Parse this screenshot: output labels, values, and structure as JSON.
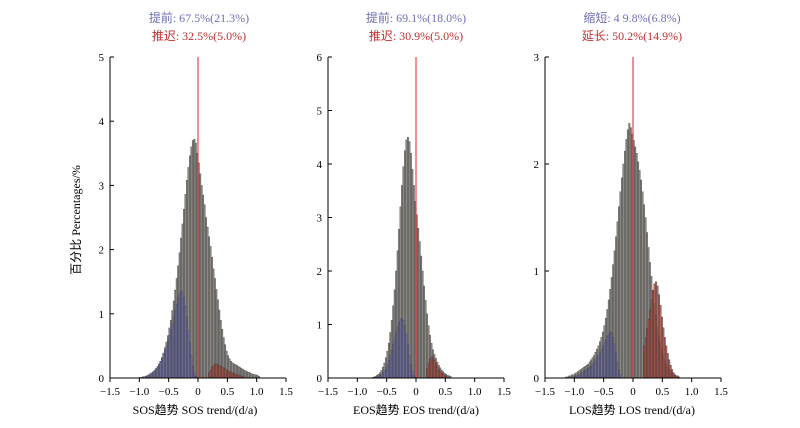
{
  "figure": {
    "ylabel": "百分比 Percentages/%"
  },
  "colors": {
    "gray_bar": "#8c8884",
    "gray_edge": "#3a3a3a",
    "blue_fill": "#6a6a9c",
    "red_fill": "#a84a40",
    "zero_line": "#e02020",
    "ann_blue": "#6f6fb8",
    "ann_red": "#c03030"
  },
  "chart_data": [
    {
      "type": "histogram",
      "xlabel": "SOS趋势 SOS trend/(d/a)",
      "ylim": [
        0,
        5
      ],
      "yticks": [
        "0",
        "1",
        "2",
        "3",
        "4",
        "5"
      ],
      "xlim": [
        -1.5,
        1.5
      ],
      "xticks": [
        "−1.5",
        "−1.0",
        "−0.5",
        "0",
        "0.5",
        "1.0",
        "1.5"
      ],
      "annotation_top": "提前: 67.5%(21.3%)",
      "annotation_bottom": "推迟: 32.5%(5.0%)",
      "bins": {
        "start": -0.95,
        "width": 0.025
      },
      "total": [
        0.01,
        0.02,
        0.02,
        0.03,
        0.04,
        0.05,
        0.07,
        0.09,
        0.11,
        0.14,
        0.17,
        0.21,
        0.26,
        0.32,
        0.39,
        0.47,
        0.56,
        0.66,
        0.78,
        0.9,
        1.05,
        1.2,
        1.37,
        1.55,
        1.75,
        1.95,
        2.18,
        2.4,
        2.63,
        2.86,
        3.08,
        3.28,
        3.46,
        3.6,
        3.7,
        3.72,
        3.66,
        3.5,
        3.35,
        3.18,
        3.0,
        2.85,
        2.7,
        2.5,
        2.35,
        2.2,
        2.05,
        1.88,
        1.7,
        1.55,
        1.38,
        1.22,
        1.06,
        0.9,
        0.76,
        0.63,
        0.52,
        0.42,
        0.35,
        0.3,
        0.26,
        0.24,
        0.22,
        0.21,
        0.2,
        0.18,
        0.17,
        0.15,
        0.14,
        0.12,
        0.11,
        0.1,
        0.09,
        0.08,
        0.07,
        0.06,
        0.05,
        0.05,
        0.04,
        0.03
      ],
      "highlight_neg": [
        0.01,
        0.01,
        0.02,
        0.02,
        0.03,
        0.04,
        0.05,
        0.07,
        0.08,
        0.1,
        0.12,
        0.15,
        0.18,
        0.22,
        0.26,
        0.31,
        0.37,
        0.43,
        0.5,
        0.58,
        0.66,
        0.75,
        0.85,
        0.95,
        1.05,
        1.15,
        1.25,
        1.32,
        1.36,
        1.34,
        1.25,
        1.12,
        0.95,
        0.75,
        0.55,
        0.35,
        0.18,
        0.08,
        0.03,
        0.01
      ],
      "highlight_pos": [
        0.08,
        0.12,
        0.17,
        0.2,
        0.22,
        0.22,
        0.21,
        0.2,
        0.18,
        0.17,
        0.15,
        0.14,
        0.12,
        0.11,
        0.1,
        0.09,
        0.08,
        0.07,
        0.06,
        0.05,
        0.05,
        0.04,
        0.03,
        0.03
      ]
    },
    {
      "type": "histogram",
      "xlabel": "EOS趋势 EOS trend/(d/a)",
      "ylim": [
        0,
        6
      ],
      "yticks": [
        "0",
        "1",
        "2",
        "3",
        "4",
        "5",
        "6"
      ],
      "xlim": [
        -1.5,
        1.5
      ],
      "xticks": [
        "−1.5",
        "−1.0",
        "−0.5",
        "0",
        "0.5",
        "1.0",
        "1.5"
      ],
      "annotation_top": "提前: 69.1%(18.0%)",
      "annotation_bottom": "推迟: 30.9%(5.0%)",
      "bins": {
        "start": -0.75,
        "width": 0.025
      },
      "total": [
        0.01,
        0.02,
        0.03,
        0.05,
        0.07,
        0.1,
        0.14,
        0.2,
        0.28,
        0.38,
        0.5,
        0.65,
        0.85,
        1.08,
        1.35,
        1.65,
        2.0,
        2.38,
        2.78,
        3.2,
        3.6,
        3.95,
        4.25,
        4.45,
        4.5,
        4.42,
        4.2,
        3.9,
        3.6,
        3.3,
        3.05,
        2.8,
        2.55,
        2.28,
        2.0,
        1.72,
        1.45,
        1.2,
        0.98,
        0.8,
        0.65,
        0.53,
        0.44,
        0.37,
        0.3,
        0.24,
        0.19,
        0.15,
        0.12,
        0.09,
        0.07,
        0.05,
        0.04,
        0.03
      ],
      "highlight_neg": [
        0.01,
        0.01,
        0.02,
        0.03,
        0.05,
        0.07,
        0.1,
        0.14,
        0.19,
        0.25,
        0.33,
        0.42,
        0.52,
        0.63,
        0.75,
        0.86,
        0.96,
        1.04,
        1.1,
        1.12,
        1.08,
        0.98,
        0.82,
        0.62,
        0.42,
        0.25,
        0.12,
        0.05,
        0.02
      ],
      "highlight_pos": [
        0.18,
        0.28,
        0.36,
        0.4,
        0.38,
        0.33,
        0.27,
        0.21,
        0.16,
        0.12,
        0.09,
        0.06,
        0.04,
        0.03
      ]
    },
    {
      "type": "histogram",
      "xlabel": "LOS趋势 LOS trend/(d/a)",
      "ylim": [
        0,
        3
      ],
      "yticks": [
        "0",
        "1",
        "2",
        "3"
      ],
      "xlim": [
        -1.5,
        1.5
      ],
      "xticks": [
        "−1.5",
        "−1.0",
        "−0.5",
        "0",
        "0.5",
        "1.0",
        "1.5"
      ],
      "annotation_top": "缩短: 4 9.8%(6.8%)",
      "annotation_bottom": "延长: 50.2%(14.9%)",
      "bins": {
        "start": -1.15,
        "width": 0.025
      },
      "total": [
        0.01,
        0.01,
        0.02,
        0.02,
        0.03,
        0.03,
        0.04,
        0.05,
        0.06,
        0.07,
        0.08,
        0.09,
        0.1,
        0.11,
        0.12,
        0.13,
        0.15,
        0.17,
        0.19,
        0.21,
        0.24,
        0.27,
        0.3,
        0.34,
        0.38,
        0.43,
        0.49,
        0.56,
        0.64,
        0.73,
        0.83,
        0.94,
        1.06,
        1.19,
        1.32,
        1.46,
        1.6,
        1.74,
        1.87,
        2.0,
        2.12,
        2.23,
        2.32,
        2.38,
        2.34,
        2.28,
        2.22,
        2.16,
        2.1,
        2.02,
        1.94,
        1.85,
        1.74,
        1.62,
        1.5,
        1.36,
        1.22,
        1.08,
        0.95,
        0.82,
        0.7,
        0.59,
        0.49,
        0.4,
        0.33,
        0.27,
        0.22,
        0.17,
        0.13,
        0.1,
        0.08,
        0.06,
        0.05,
        0.04,
        0.03,
        0.02,
        0.02,
        0.01
      ],
      "highlight_neg": [
        0.01,
        0.01,
        0.02,
        0.02,
        0.03,
        0.04,
        0.05,
        0.06,
        0.07,
        0.08,
        0.09,
        0.1,
        0.11,
        0.13,
        0.15,
        0.17,
        0.19,
        0.21,
        0.24,
        0.27,
        0.3,
        0.33,
        0.36,
        0.39,
        0.41,
        0.43,
        0.42,
        0.38,
        0.32,
        0.24,
        0.15,
        0.08,
        0.03
      ],
      "highlight_pos": [
        0.3,
        0.38,
        0.46,
        0.55,
        0.64,
        0.73,
        0.82,
        0.88,
        0.9,
        0.86,
        0.78,
        0.68,
        0.57,
        0.47,
        0.38,
        0.3,
        0.23,
        0.17,
        0.12,
        0.08,
        0.05,
        0.03,
        0.02,
        0.01
      ]
    }
  ]
}
